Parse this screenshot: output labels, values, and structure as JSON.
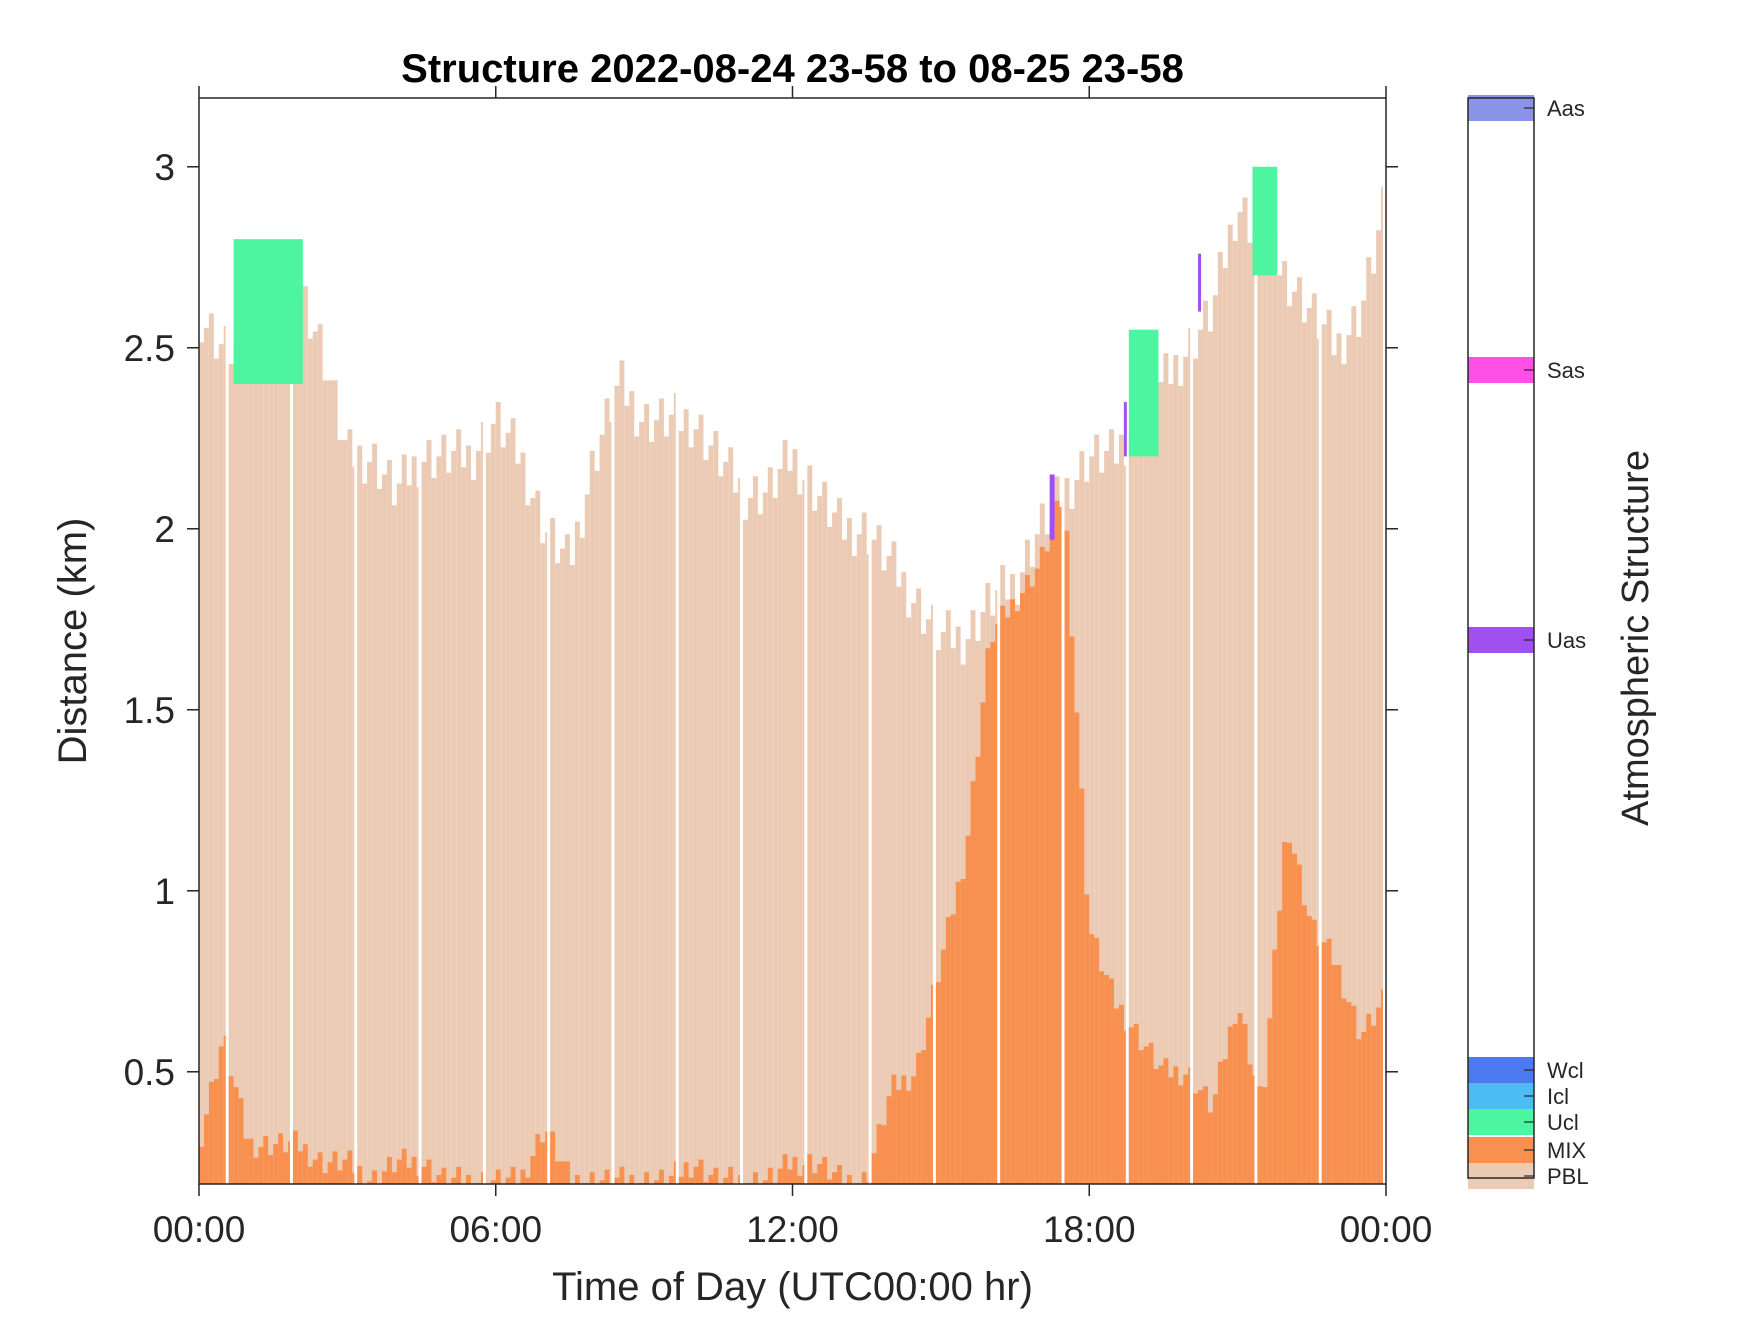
{
  "chart_data": {
    "type": "area",
    "title": "Structure 2022-08-24 23-58 to 08-25 23-58",
    "xlabel": "Time of Day (UTC00:00 hr)",
    "ylabel": "Distance (km)",
    "xlim": [
      0,
      24
    ],
    "ylim": [
      0.19,
      3.19
    ],
    "xticks": [
      0,
      6,
      12,
      18,
      24
    ],
    "xtick_labels": [
      "00:00",
      "06:00",
      "12:00",
      "18:00",
      "00:00"
    ],
    "yticks": [
      0.5,
      1,
      1.5,
      2,
      2.5,
      3
    ],
    "ytick_labels": [
      "0.5",
      "1",
      "1.5",
      "2",
      "2.5",
      "3"
    ],
    "grid": false,
    "pbl_height": {
      "x": [
        0,
        0.5,
        1,
        1.5,
        2,
        2.5,
        3,
        3.5,
        4,
        4.5,
        5,
        5.5,
        6,
        6.5,
        7,
        7.5,
        8,
        8.5,
        9,
        9.5,
        10,
        10.5,
        11,
        11.5,
        12,
        12.5,
        13,
        13.5,
        14,
        14.5,
        15,
        15.5,
        16,
        16.5,
        17,
        17.5,
        18,
        18.5,
        19,
        19.5,
        20,
        20.5,
        21,
        21.5,
        22,
        22.5,
        23,
        23.5,
        24
      ],
      "values": [
        2.6,
        2.5,
        2.5,
        2.6,
        2.7,
        2.5,
        2.2,
        2.2,
        2.1,
        2.2,
        2.2,
        2.2,
        2.3,
        2.2,
        2.0,
        1.9,
        2.2,
        2.4,
        2.3,
        2.3,
        2.3,
        2.2,
        2.1,
        2.1,
        2.2,
        2.1,
        2.0,
        2.0,
        1.9,
        1.8,
        1.7,
        1.7,
        1.8,
        1.85,
        2.0,
        2.1,
        2.2,
        2.2,
        2.3,
        2.4,
        2.5,
        2.6,
        2.9,
        2.8,
        2.7,
        2.6,
        2.5,
        2.6,
        2.9
      ]
    },
    "mix_height": {
      "x": [
        0,
        0.5,
        1,
        1.5,
        2,
        2.5,
        3,
        3.5,
        4,
        4.5,
        5,
        5.5,
        6,
        6.5,
        7,
        7.5,
        8,
        8.5,
        9,
        9.5,
        10,
        10.5,
        11,
        11.5,
        12,
        12.5,
        13,
        13.5,
        14,
        14.5,
        15,
        15.5,
        16,
        16.5,
        17,
        17.5,
        18,
        18.5,
        19,
        19.5,
        20,
        20.5,
        21,
        21.5,
        22,
        22.5,
        23,
        23.5,
        24
      ],
      "values": [
        0.3,
        0.6,
        0.3,
        0.3,
        0.3,
        0.25,
        0.25,
        0.2,
        0.25,
        0.25,
        0.2,
        0.2,
        0.2,
        0.2,
        0.35,
        0.2,
        0.2,
        0.2,
        0.2,
        0.2,
        0.25,
        0.2,
        0.2,
        0.2,
        0.25,
        0.25,
        0.2,
        0.2,
        0.45,
        0.5,
        0.8,
        1.1,
        1.7,
        1.8,
        1.9,
        2.1,
        0.9,
        0.7,
        0.6,
        0.5,
        0.5,
        0.4,
        0.7,
        0.4,
        1.2,
        0.9,
        0.8,
        0.6,
        0.7
      ]
    },
    "cloud_segments": [
      {
        "class": "Ucl",
        "x": [
          0.7,
          2.1
        ],
        "y": [
          2.4,
          2.8
        ]
      },
      {
        "class": "Ucl",
        "x": [
          18.8,
          19.4
        ],
        "y": [
          2.2,
          2.55
        ]
      },
      {
        "class": "Ucl",
        "x": [
          21.3,
          21.8
        ],
        "y": [
          2.7,
          3.0
        ]
      }
    ],
    "aerosol_segments": [
      {
        "class": "Uas",
        "x": [
          17.2,
          17.3
        ],
        "y": [
          1.97,
          2.15
        ]
      },
      {
        "class": "Uas",
        "x": [
          18.7,
          18.75
        ],
        "y": [
          2.2,
          2.35
        ]
      },
      {
        "class": "Uas",
        "x": [
          20.2,
          20.25
        ],
        "y": [
          2.6,
          2.76
        ]
      }
    ],
    "colorbar": {
      "title": "Atmospheric Structure",
      "classes": [
        {
          "label": "Aas",
          "color": "#8a93e6"
        },
        {
          "label": "Sas",
          "color": "#ff50e6"
        },
        {
          "label": "Uas",
          "color": "#a050f0"
        },
        {
          "label": "Wcl",
          "color": "#4c78f0"
        },
        {
          "label": "Icl",
          "color": "#4cbcf5"
        },
        {
          "label": "Ucl",
          "color": "#4df5a0"
        },
        {
          "label": "MIX",
          "color": "#f89050"
        },
        {
          "label": "PBL",
          "color": "#eccbb5"
        }
      ]
    }
  }
}
